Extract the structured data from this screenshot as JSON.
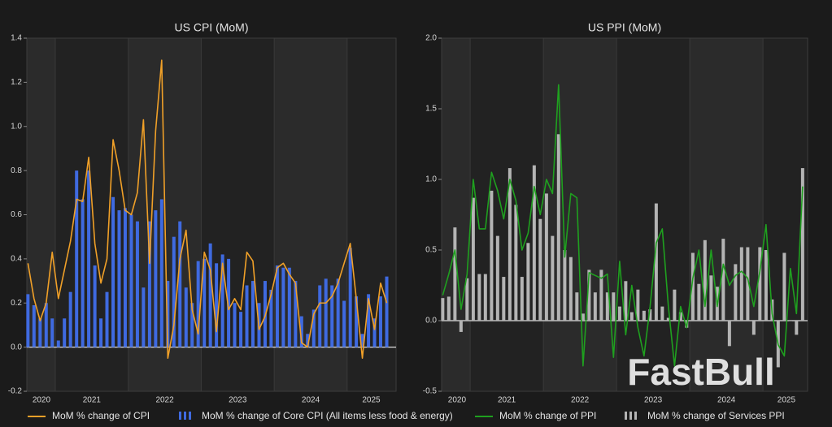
{
  "watermark": "FastBull",
  "chart_data": [
    {
      "type": "combo",
      "title": "US CPI (MoM)",
      "x": [
        2020.625,
        2020.708,
        2020.792,
        2020.875,
        2020.958,
        2021.042,
        2021.125,
        2021.208,
        2021.292,
        2021.375,
        2021.458,
        2021.542,
        2021.625,
        2021.708,
        2021.792,
        2021.875,
        2021.958,
        2022.042,
        2022.125,
        2022.208,
        2022.292,
        2022.375,
        2022.458,
        2022.542,
        2022.625,
        2022.708,
        2022.792,
        2022.875,
        2022.958,
        2023.042,
        2023.125,
        2023.208,
        2023.292,
        2023.375,
        2023.458,
        2023.542,
        2023.625,
        2023.708,
        2023.792,
        2023.875,
        2023.958,
        2024.042,
        2024.125,
        2024.208,
        2024.292,
        2024.375,
        2024.458,
        2024.542,
        2024.625,
        2024.708,
        2024.792,
        2024.875,
        2024.958,
        2025.042,
        2025.125,
        2025.208,
        2025.292,
        2025.375,
        2025.458,
        2025.542
      ],
      "xlim": [
        2020.61,
        2025.67
      ],
      "xticks": [
        {
          "value": 2020.81,
          "label": "2020"
        },
        {
          "value": 2021.5,
          "label": "2021"
        },
        {
          "value": 2022.5,
          "label": "2022"
        },
        {
          "value": 2023.5,
          "label": "2023"
        },
        {
          "value": 2024.5,
          "label": "2024"
        },
        {
          "value": 2025.33,
          "label": "2025"
        }
      ],
      "ylim": [
        -0.2,
        1.4
      ],
      "yticks": [
        -0.2,
        {
          "value": 0,
          "label": "0.0"
        },
        0.2,
        0.4,
        0.6,
        0.8,
        {
          "value": 1,
          "label": "1.0"
        },
        1.2,
        1.4
      ],
      "series": [
        {
          "name": "MoM % change of CPI",
          "type": "line",
          "color": "#f0a028",
          "values": [
            0.38,
            0.22,
            0.12,
            0.2,
            0.43,
            0.22,
            0.35,
            0.48,
            0.67,
            0.66,
            0.86,
            0.47,
            0.29,
            0.4,
            0.94,
            0.8,
            0.62,
            0.6,
            0.7,
            1.03,
            0.38,
            0.98,
            1.3,
            -0.05,
            0.1,
            0.4,
            0.53,
            0.17,
            0.06,
            0.43,
            0.35,
            0.07,
            0.38,
            0.17,
            0.22,
            0.17,
            0.43,
            0.39,
            0.08,
            0.14,
            0.24,
            0.36,
            0.38,
            0.33,
            0.29,
            0.02,
            0.0,
            0.15,
            0.2,
            0.2,
            0.23,
            0.29,
            0.38,
            0.47,
            0.22,
            -0.05,
            0.22,
            0.08,
            0.29,
            0.2
          ]
        },
        {
          "name": "MoM % change of Core CPI (All items less food & energy)",
          "type": "bar",
          "color": "#3f6ae0",
          "values": [
            0.24,
            0.19,
            0.13,
            0.2,
            0.13,
            0.03,
            0.13,
            0.25,
            0.8,
            0.67,
            0.8,
            0.37,
            0.13,
            0.25,
            0.68,
            0.62,
            0.63,
            0.6,
            0.57,
            0.27,
            0.57,
            0.62,
            0.67,
            0.3,
            0.5,
            0.57,
            0.27,
            0.2,
            0.39,
            0.4,
            0.47,
            0.38,
            0.42,
            0.4,
            0.2,
            0.16,
            0.28,
            0.3,
            0.2,
            0.3,
            0.26,
            0.37,
            0.36,
            0.36,
            0.3,
            0.14,
            0.06,
            0.17,
            0.28,
            0.31,
            0.28,
            0.31,
            0.21,
            0.45,
            0.23,
            0.06,
            0.24,
            0.13,
            0.23,
            0.32
          ]
        }
      ]
    },
    {
      "type": "combo",
      "title": "US PPI (MoM)",
      "x": [
        2020.625,
        2020.708,
        2020.792,
        2020.875,
        2020.958,
        2021.042,
        2021.125,
        2021.208,
        2021.292,
        2021.375,
        2021.458,
        2021.542,
        2021.625,
        2021.708,
        2021.792,
        2021.875,
        2021.958,
        2022.042,
        2022.125,
        2022.208,
        2022.292,
        2022.375,
        2022.458,
        2022.542,
        2022.625,
        2022.708,
        2022.792,
        2022.875,
        2022.958,
        2023.042,
        2023.125,
        2023.208,
        2023.292,
        2023.375,
        2023.458,
        2023.542,
        2023.625,
        2023.708,
        2023.792,
        2023.875,
        2023.958,
        2024.042,
        2024.125,
        2024.208,
        2024.292,
        2024.375,
        2024.458,
        2024.542,
        2024.625,
        2024.708,
        2024.792,
        2024.875,
        2024.958,
        2025.042,
        2025.125,
        2025.208,
        2025.292,
        2025.375,
        2025.458,
        2025.542
      ],
      "xlim": [
        2020.61,
        2025.61
      ],
      "xticks": [
        {
          "value": 2020.82,
          "label": "2020"
        },
        {
          "value": 2021.5,
          "label": "2021"
        },
        {
          "value": 2022.5,
          "label": "2022"
        },
        {
          "value": 2023.5,
          "label": "2023"
        },
        {
          "value": 2024.5,
          "label": "2024"
        },
        {
          "value": 2025.32,
          "label": "2025"
        }
      ],
      "ylim": [
        -0.5,
        2.0
      ],
      "yticks": [
        -0.5,
        {
          "value": 0,
          "label": "0.0"
        },
        0.5,
        {
          "value": 1,
          "label": "1.0"
        },
        1.5,
        {
          "value": 2,
          "label": "2.0"
        }
      ],
      "series": [
        {
          "name": "MoM % change of PPI",
          "type": "line",
          "color": "#1fa01f",
          "values": [
            0.18,
            0.33,
            0.5,
            0.08,
            0.33,
            1.0,
            0.65,
            0.65,
            1.05,
            0.92,
            0.72,
            1.0,
            0.85,
            0.5,
            0.62,
            0.95,
            0.75,
            1.0,
            0.9,
            1.67,
            0.45,
            0.9,
            0.87,
            -0.32,
            0.34,
            0.32,
            0.3,
            0.33,
            -0.26,
            0.42,
            -0.1,
            0.25,
            -0.05,
            -0.25,
            0.1,
            0.55,
            0.65,
            0.1,
            -0.32,
            0.1,
            -0.05,
            0.3,
            0.5,
            0.1,
            0.5,
            0.1,
            0.4,
            0.25,
            0.32,
            0.35,
            0.3,
            0.1,
            0.35,
            0.68,
            0.05,
            -0.17,
            -0.25,
            0.37,
            0.05,
            0.95
          ]
        },
        {
          "name": "MoM % change of Services PPI",
          "type": "bar",
          "color": "#b4b4b4",
          "values": [
            0.16,
            0.17,
            0.66,
            -0.08,
            0.3,
            0.87,
            0.33,
            0.33,
            0.92,
            0.6,
            0.31,
            1.08,
            0.82,
            0.31,
            0.55,
            1.1,
            0.72,
            0.9,
            0.6,
            1.32,
            0.5,
            0.45,
            0.2,
            0.05,
            0.36,
            0.2,
            0.36,
            0.2,
            0.2,
            0.1,
            0.28,
            0.06,
            0.22,
            0.07,
            0.08,
            0.83,
            0.1,
            0.02,
            0.22,
            0.06,
            -0.05,
            0.48,
            0.26,
            0.57,
            0.32,
            0.24,
            0.58,
            -0.18,
            0.4,
            0.52,
            0.52,
            -0.1,
            0.52,
            0.5,
            0.15,
            -0.33,
            0.48,
            0.0,
            -0.1,
            1.08
          ]
        }
      ]
    }
  ]
}
